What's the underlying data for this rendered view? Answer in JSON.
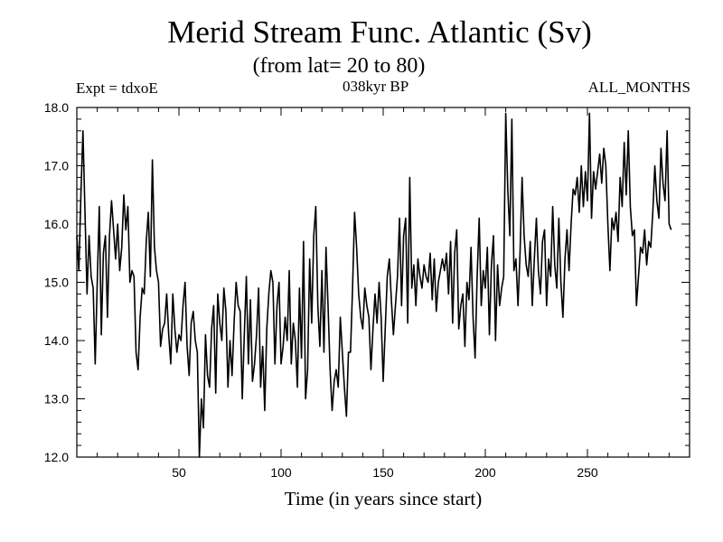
{
  "chart_data": {
    "type": "line",
    "title": "Merid Stream Func. Atlantic (Sv)",
    "subtitle": "(from lat= 20 to 80)",
    "annotations": {
      "left": "Expt = tdxoE",
      "center": "038kyr BP",
      "right": "ALL_MONTHS"
    },
    "xlabel": "Time (in years since start)",
    "ylabel": "",
    "xlim": [
      0,
      300
    ],
    "ylim": [
      12.0,
      18.0
    ],
    "xticks": [
      50,
      100,
      150,
      200,
      250
    ],
    "yticks": [
      "12.0",
      "13.0",
      "14.0",
      "15.0",
      "16.0",
      "17.0",
      "18.0"
    ],
    "grid": false,
    "series": [
      {
        "name": "",
        "color": "#000000",
        "x_start": 0,
        "x_step": 1,
        "values": [
          15.8,
          15.2,
          16.5,
          17.6,
          16.2,
          14.8,
          15.8,
          15.1,
          14.9,
          13.6,
          15.0,
          16.3,
          14.1,
          15.5,
          15.8,
          14.4,
          15.8,
          16.4,
          15.9,
          15.4,
          16.0,
          15.2,
          15.6,
          16.5,
          15.9,
          16.3,
          15.0,
          15.2,
          15.1,
          13.8,
          13.5,
          14.4,
          14.9,
          14.8,
          15.7,
          16.2,
          15.1,
          17.1,
          15.6,
          15.2,
          15.0,
          13.9,
          14.2,
          14.3,
          14.8,
          14.1,
          13.6,
          14.8,
          14.2,
          13.8,
          14.1,
          14.0,
          14.6,
          15.0,
          13.9,
          13.4,
          14.3,
          14.5,
          14.0,
          13.8,
          12.0,
          13.0,
          12.5,
          14.1,
          13.4,
          13.2,
          14.2,
          14.6,
          13.1,
          14.8,
          14.3,
          14.0,
          14.9,
          14.5,
          13.2,
          14.0,
          13.4,
          14.3,
          15.0,
          14.6,
          14.5,
          13.0,
          14.1,
          15.1,
          13.6,
          14.7,
          13.3,
          13.6,
          14.1,
          14.9,
          13.2,
          13.9,
          12.8,
          14.2,
          14.8,
          15.2,
          15.0,
          13.6,
          14.6,
          15.0,
          13.6,
          13.9,
          14.4,
          14.0,
          15.2,
          13.6,
          14.3,
          14.0,
          13.2,
          14.9,
          13.7,
          15.7,
          13.0,
          13.5,
          15.4,
          14.3,
          15.8,
          16.3,
          14.6,
          13.9,
          15.2,
          13.8,
          15.6,
          14.6,
          13.5,
          12.8,
          13.3,
          13.5,
          13.2,
          14.4,
          13.8,
          13.2,
          12.7,
          13.8,
          13.8,
          14.9,
          16.2,
          15.6,
          14.8,
          14.4,
          14.2,
          14.9,
          14.6,
          14.4,
          13.5,
          14.2,
          14.8,
          14.3,
          15.0,
          14.4,
          13.3,
          14.2,
          15.1,
          15.4,
          14.7,
          14.1,
          14.6,
          15.1,
          16.1,
          14.6,
          15.8,
          16.1,
          14.3,
          16.8,
          14.9,
          15.3,
          14.6,
          15.4,
          15.1,
          14.9,
          15.3,
          15.1,
          15.0,
          15.5,
          14.7,
          15.4,
          14.5,
          15.0,
          15.2,
          15.4,
          15.2,
          15.5,
          14.8,
          15.7,
          14.3,
          15.5,
          15.9,
          14.2,
          14.6,
          14.8,
          13.9,
          15.0,
          14.7,
          15.6,
          14.4,
          13.7,
          15.1,
          16.1,
          14.6,
          15.2,
          14.9,
          15.6,
          14.1,
          15.3,
          15.8,
          14.0,
          15.3,
          14.6,
          14.9,
          15.1,
          17.9,
          16.6,
          15.8,
          17.8,
          15.2,
          15.4,
          14.6,
          15.5,
          16.8,
          15.8,
          15.3,
          15.1,
          15.7,
          14.6,
          15.4,
          16.1,
          15.2,
          14.8,
          15.7,
          15.9,
          14.6,
          15.4,
          15.1,
          16.3,
          15.3,
          14.9,
          16.1,
          15.0,
          14.4,
          15.4,
          15.9,
          15.2,
          16.0,
          16.6,
          16.5,
          16.8,
          16.2,
          17.0,
          16.3,
          16.9,
          16.4,
          17.9,
          16.1,
          16.9,
          16.6,
          16.9,
          17.2,
          16.7,
          17.3,
          17.0,
          16.0,
          15.2,
          16.1,
          15.9,
          16.2,
          15.7,
          16.8,
          16.3,
          17.4,
          16.5,
          17.6,
          16.3,
          15.8,
          15.9,
          14.6,
          15.1,
          15.6,
          15.5,
          15.9,
          15.3,
          15.7,
          15.6,
          16.2,
          17.0,
          16.4,
          16.1,
          17.3,
          16.7,
          16.4,
          17.6,
          16.0,
          15.9
        ]
      }
    ]
  }
}
